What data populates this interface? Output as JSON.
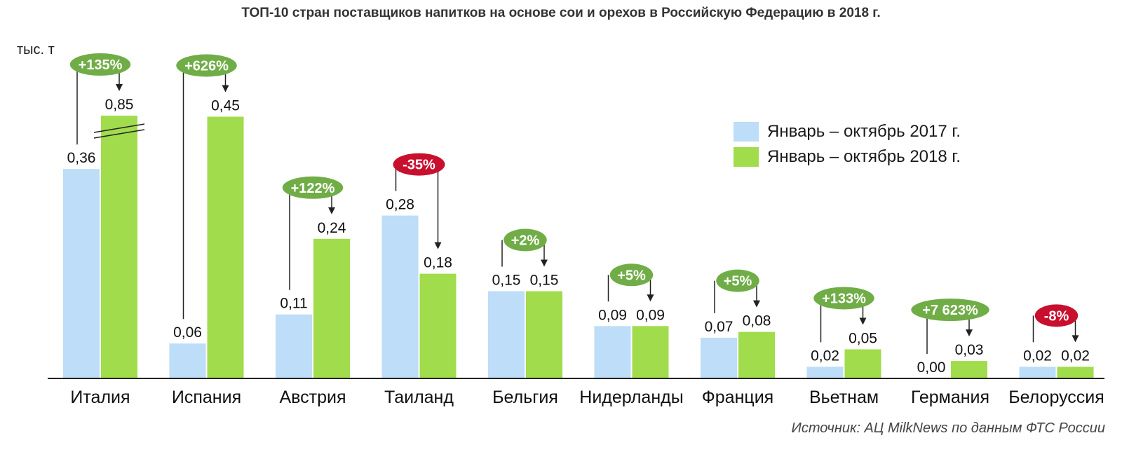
{
  "chart_data": {
    "type": "bar",
    "title": "ТОП-10 стран поставщиков напитков на основе сои и орехов в Российскую Федерацию в 2018 г.",
    "ylabel": "тыс. т",
    "ylim": [
      0,
      0.85
    ],
    "categories": [
      "Италия",
      "Испания",
      "Австрия",
      "Таиланд",
      "Бельгия",
      "Нидерланды",
      "Франция",
      "Вьетнам",
      "Германия",
      "Белоруссия"
    ],
    "series": [
      {
        "name": "Январь – октябрь 2017 г.",
        "color": "#bdddf8",
        "values": [
          0.36,
          0.06,
          0.11,
          0.28,
          0.15,
          0.09,
          0.07,
          0.02,
          0.0,
          0.02
        ],
        "labels": [
          "0,36",
          "0,06",
          "0,11",
          "0,28",
          "0,15",
          "0,09",
          "0,07",
          "0,02",
          "0,00",
          "0,02"
        ]
      },
      {
        "name": "Январь – октябрь 2018 г.",
        "color": "#a1dc4c",
        "values": [
          0.85,
          0.45,
          0.24,
          0.18,
          0.15,
          0.09,
          0.08,
          0.05,
          0.03,
          0.02
        ],
        "labels": [
          "0,85",
          "0,45",
          "0,24",
          "0,18",
          "0,15",
          "0,09",
          "0,08",
          "0,05",
          "0,03",
          "0,02"
        ]
      }
    ],
    "changes": [
      "+135%",
      "+626%",
      "+122%",
      "-35%",
      "+2%",
      "+5%",
      "+5%",
      "+133%",
      "+7 623%",
      "-8%"
    ],
    "change_colors": {
      "positive": "#70ad47",
      "negative": "#c8102e"
    },
    "axis_break_on": "Италия",
    "grid": false,
    "legend_position": "top-right"
  },
  "source": "Источник: АЦ MilkNews по данным ФТС России"
}
